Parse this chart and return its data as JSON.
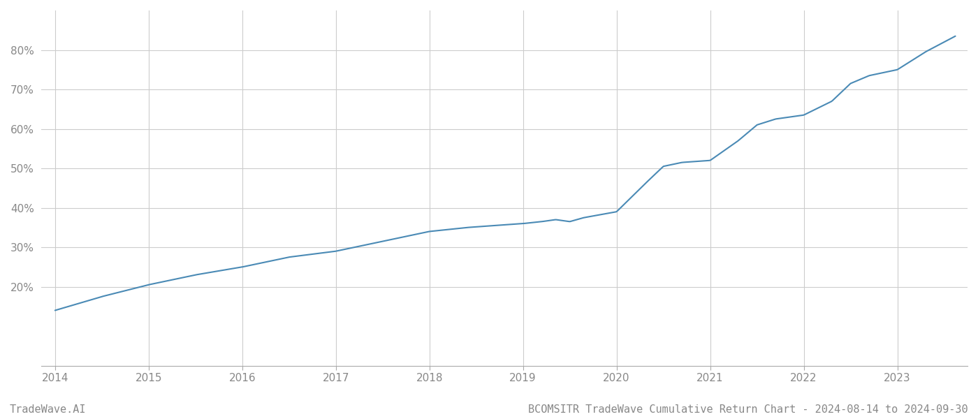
{
  "title": "BCOMSITR TradeWave Cumulative Return Chart - 2024-08-14 to 2024-09-30",
  "watermark": "TradeWave.AI",
  "line_color": "#4a8ab5",
  "background_color": "#ffffff",
  "grid_color": "#cccccc",
  "x_years": [
    2014,
    2015,
    2016,
    2017,
    2018,
    2019,
    2020,
    2021,
    2022,
    2023
  ],
  "x_data": [
    2014.0,
    2014.5,
    2015.0,
    2015.5,
    2016.0,
    2016.5,
    2017.0,
    2017.5,
    2018.0,
    2018.4,
    2018.7,
    2019.0,
    2019.2,
    2019.35,
    2019.5,
    2019.65,
    2020.0,
    2020.3,
    2020.5,
    2020.7,
    2021.0,
    2021.3,
    2021.5,
    2021.7,
    2022.0,
    2022.3,
    2022.5,
    2022.7,
    2023.0,
    2023.3,
    2023.62
  ],
  "y_data": [
    14.0,
    17.5,
    20.5,
    23.0,
    25.0,
    27.5,
    29.0,
    31.5,
    34.0,
    35.0,
    35.5,
    36.0,
    36.5,
    37.0,
    36.5,
    37.5,
    39.0,
    46.0,
    50.5,
    51.5,
    52.0,
    57.0,
    61.0,
    62.5,
    63.5,
    67.0,
    71.5,
    73.5,
    75.0,
    79.5,
    83.5
  ],
  "ylim": [
    0,
    90
  ],
  "xlim": [
    2013.85,
    2023.75
  ],
  "yticks": [
    20,
    30,
    40,
    50,
    60,
    70,
    80
  ],
  "ytick_labels": [
    "20%",
    "30%",
    "40%",
    "50%",
    "60%",
    "70%",
    "80%"
  ],
  "title_fontsize": 11,
  "watermark_fontsize": 11,
  "axis_label_color": "#888888",
  "line_width": 1.5
}
